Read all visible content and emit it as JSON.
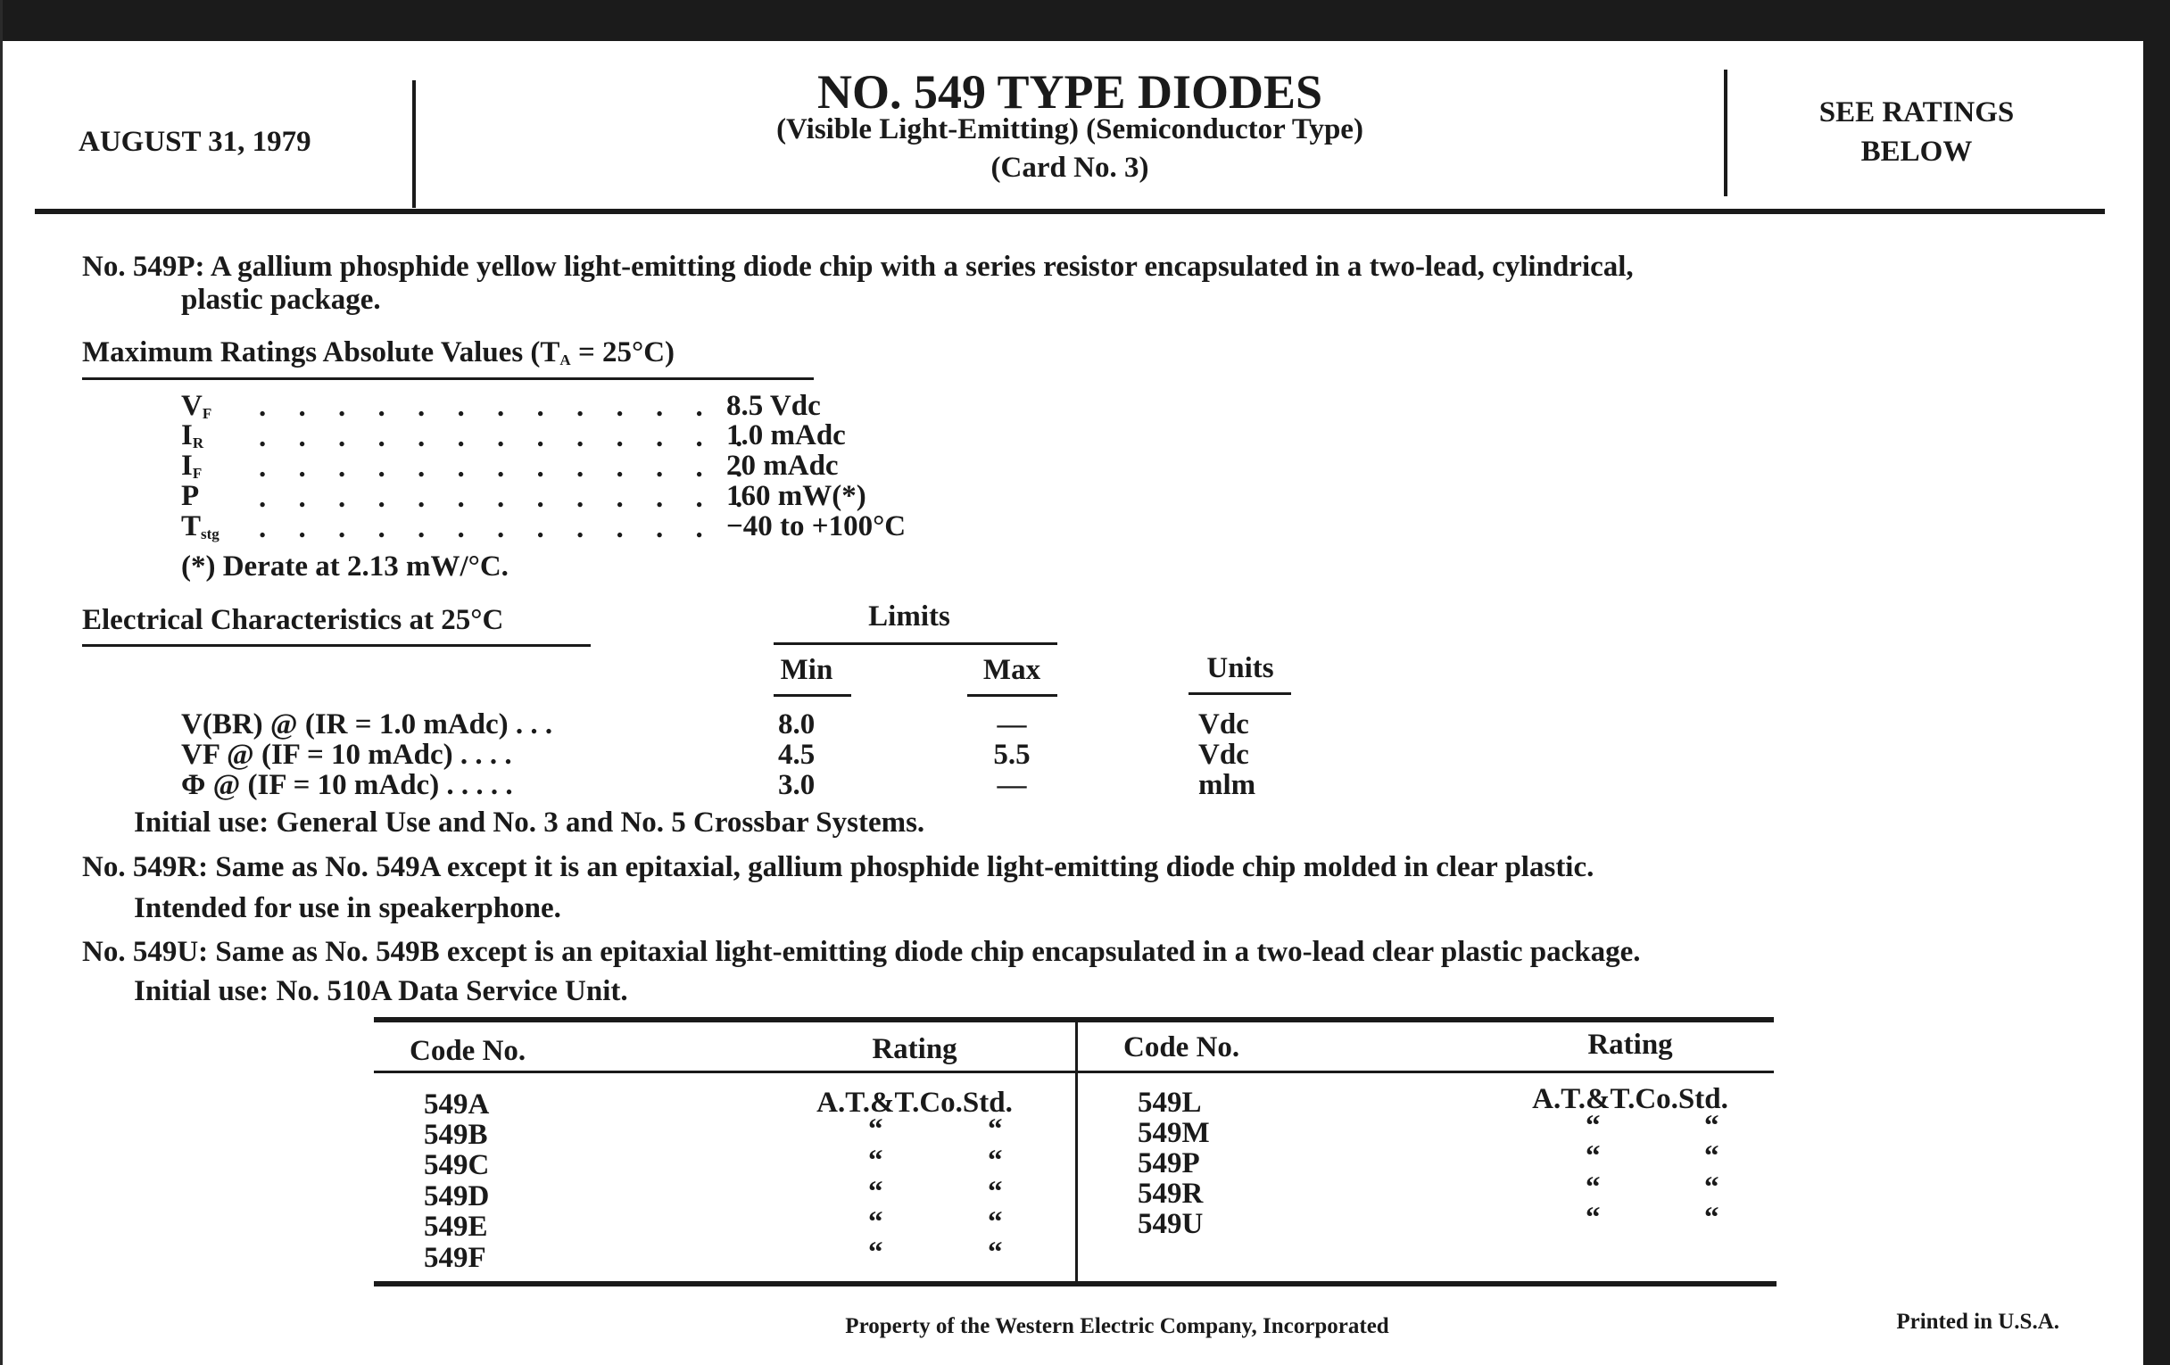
{
  "header": {
    "date": "AUGUST 31, 1979",
    "title": "NO. 549 TYPE DIODES",
    "subtitle": "(Visible Light-Emitting) (Semiconductor Type)",
    "card": "(Card No. 3)",
    "ratings_line1": "SEE RATINGS",
    "ratings_line2": "BELOW"
  },
  "p549p": {
    "line1": "No. 549P: A gallium phosphide yellow light-emitting diode chip with a series resistor encapsulated in a two-lead, cylindrical,",
    "line2": "plastic package."
  },
  "max_ratings": {
    "heading": "Maximum Ratings Absolute Values (T",
    "heading_sub": "A",
    "heading_end": " = 25°C)",
    "rows": [
      {
        "sym": "V",
        "sub": "F",
        "value": "8.5 Vdc"
      },
      {
        "sym": "I",
        "sub": "R",
        "value": "1.0 mAdc"
      },
      {
        "sym": "I",
        "sub": "F",
        "value": "20 mAdc"
      },
      {
        "sym": "P",
        "sub": "",
        "value": "160 mW(*)"
      },
      {
        "sym": "T",
        "sub": "stg",
        "value": "−40 to +100°C"
      }
    ],
    "note": "(*) Derate at 2.13 mW/°C."
  },
  "electrical": {
    "heading": "Electrical Characteristics at 25°C",
    "limits": "Limits",
    "min": "Min",
    "max": "Max",
    "units": "Units",
    "rows": [
      {
        "label": "V(BR) @ (IR = 1.0 mAdc) . . .",
        "min": "8.0",
        "max": "—",
        "units": "Vdc"
      },
      {
        "label": "VF @ (IF = 10 mAdc) . . . .",
        "min": "4.5",
        "max": "5.5",
        "units": "Vdc"
      },
      {
        "label": "Φ @ (IF = 10 mAdc) . . . . .",
        "min": "3.0",
        "max": "—",
        "units": "mlm"
      }
    ],
    "initial_use": "Initial use: General Use and No. 3 and No. 5 Crossbar Systems."
  },
  "p549r": {
    "line1": "No. 549R: Same as No. 549A except it is an epitaxial, gallium phosphide light-emitting diode chip molded in clear plastic.",
    "line2": "Intended for use in speakerphone."
  },
  "p549u": {
    "line1": "No. 549U: Same as No. 549B except is an epitaxial light-emitting diode chip encapsulated in a two-lead clear plastic package.",
    "line2": "Initial use: No. 510A Data Service Unit."
  },
  "table": {
    "col_code": "Code No.",
    "col_rating": "Rating",
    "std": "A.T.&T.Co.Std.",
    "ditto": "“",
    "left": [
      "549A",
      "549B",
      "549C",
      "549D",
      "549E",
      "549F"
    ],
    "right": [
      "549L",
      "549M",
      "549P",
      "549R",
      "549U"
    ]
  },
  "footer": {
    "property": "Property of the Western Electric Company, Incorporated",
    "printed": "Printed in U.S.A."
  }
}
